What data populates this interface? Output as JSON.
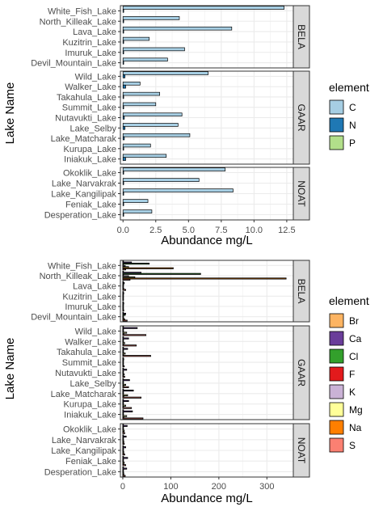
{
  "chart_data": [
    {
      "type": "bar",
      "orientation": "horizontal",
      "xlabel": "Abundance mg/L",
      "ylabel": "Lake Name",
      "xlim": [
        -0.2,
        13.0
      ],
      "xticks": [
        0.0,
        2.5,
        5.0,
        7.5,
        10.0,
        12.5
      ],
      "xtick_labels": [
        "0.0",
        "2.5",
        "5.0",
        "7.5",
        "10.0",
        "12.5"
      ],
      "grid": true,
      "legend": {
        "title": "element",
        "position": "right",
        "items": [
          {
            "label": "C",
            "color": "#a6cee3"
          },
          {
            "label": "N",
            "color": "#1f78b4"
          },
          {
            "label": "P",
            "color": "#b2df8a"
          }
        ]
      },
      "facets": [
        {
          "label": "BELA",
          "lakes": [
            "White_Fish_Lake",
            "North_Killeak_Lake",
            "Lava_Lake",
            "Kuzitrin_Lake",
            "Imuruk_Lake",
            "Devil_Mountain_Lake"
          ],
          "C": [
            12.3,
            4.3,
            8.3,
            2.0,
            4.7,
            3.4
          ],
          "N": [
            0.05,
            0.03,
            0.03,
            0.02,
            0.02,
            0.03
          ],
          "P": [
            0,
            0,
            0,
            0,
            0,
            0
          ]
        },
        {
          "label": "GAAR",
          "lakes": [
            "Wild_Lake",
            "Walker_Lake",
            "Takahula_Lake",
            "Summit_Lake",
            "Nutavukti_Lake",
            "Lake_Selby",
            "Lake_Matcharak",
            "Kurupa_Lake",
            "Iniakuk_Lake"
          ],
          "C": [
            6.5,
            1.3,
            2.8,
            2.5,
            4.5,
            4.2,
            5.1,
            2.1,
            3.3
          ],
          "N": [
            0.15,
            0.2,
            0.05,
            0.05,
            0.1,
            0.15,
            0.1,
            0.05,
            0.2
          ],
          "P": [
            0,
            0,
            0,
            0,
            0,
            0,
            0,
            0,
            0
          ]
        },
        {
          "label": "NOAT",
          "lakes": [
            "Okoklik_Lake",
            "Lake_Narvakrak",
            "Lake_Kangilipak",
            "Feniak_Lake",
            "Desperation_Lake"
          ],
          "C": [
            7.8,
            5.8,
            8.4,
            1.9,
            2.2
          ],
          "N": [
            0.05,
            0.05,
            0.05,
            0.05,
            0.05
          ],
          "P": [
            0,
            0,
            0,
            0,
            0
          ]
        }
      ]
    },
    {
      "type": "bar",
      "orientation": "horizontal",
      "xlabel": "Abundance mg/L",
      "ylabel": "Lake Name",
      "xlim": [
        -5,
        355
      ],
      "xticks": [
        0,
        100,
        200,
        300
      ],
      "xtick_labels": [
        "0",
        "100",
        "200",
        "300"
      ],
      "grid": true,
      "legend": {
        "title": "element",
        "position": "right",
        "items": [
          {
            "label": "Br",
            "color": "#fdb462"
          },
          {
            "label": "Ca",
            "color": "#6a3d9a"
          },
          {
            "label": "Cl",
            "color": "#33a02c"
          },
          {
            "label": "F",
            "color": "#e31a1c"
          },
          {
            "label": "K",
            "color": "#cab2d6"
          },
          {
            "label": "Mg",
            "color": "#ffff99"
          },
          {
            "label": "Na",
            "color": "#ff7f00"
          },
          {
            "label": "S",
            "color": "#fb8072"
          }
        ]
      },
      "element_order": [
        "Br",
        "Ca",
        "Cl",
        "F",
        "K",
        "Mg",
        "Na",
        "S"
      ],
      "facets": [
        {
          "label": "BELA",
          "lakes": [
            "White_Fish_Lake",
            "North_Killeak_Lake",
            "Lava_Lake",
            "Kuzitrin_Lake",
            "Imuruk_Lake",
            "Devil_Mountain_Lake"
          ],
          "values": [
            [
              0.1,
              18,
              55,
              0.05,
              5,
              12,
              105,
              6
            ],
            [
              0.5,
              38,
              162,
              0.1,
              12,
              25,
              340,
              15
            ],
            [
              0.01,
              3,
              2,
              0.02,
              0.5,
              1,
              2,
              6
            ],
            [
              0.01,
              2,
              1,
              0.02,
              0.3,
              0.5,
              1,
              1
            ],
            [
              0.01,
              2,
              1,
              0.02,
              0.3,
              0.5,
              1,
              2
            ],
            [
              0.01,
              6,
              5,
              0.02,
              1,
              2,
              4,
              9
            ]
          ]
        },
        {
          "label": "GAAR",
          "lakes": [
            "Wild_Lake",
            "Walker_Lake",
            "Takahula_Lake",
            "Summit_Lake",
            "Nutavukti_Lake",
            "Lake_Selby",
            "Lake_Matcharak",
            "Kurupa_Lake",
            "Iniakuk_Lake"
          ],
          "values": [
            [
              0.01,
              30,
              1,
              0.05,
              1,
              8,
              2,
              48
            ],
            [
              0.01,
              12,
              1,
              0.05,
              1,
              4,
              1,
              28
            ],
            [
              0.01,
              10,
              1,
              0.05,
              1,
              5,
              1,
              58
            ],
            [
              0.01,
              2,
              1,
              0.05,
              0.5,
              1,
              1,
              3
            ],
            [
              0.01,
              8,
              1,
              0.05,
              1,
              3,
              1,
              4
            ],
            [
              0.01,
              14,
              1,
              0.05,
              1,
              6,
              2,
              12
            ],
            [
              0.01,
              22,
              1,
              0.05,
              1,
              10,
              2,
              38
            ],
            [
              0.01,
              12,
              1,
              0.05,
              1,
              6,
              1,
              18
            ],
            [
              0.01,
              20,
              1,
              0.05,
              1,
              8,
              2,
              42
            ]
          ]
        },
        {
          "label": "NOAT",
          "lakes": [
            "Okoklik_Lake",
            "Lake_Narvakrak",
            "Lake_Kangilipak",
            "Feniak_Lake",
            "Desperation_Lake"
          ],
          "values": [
            [
              0.01,
              9,
              1,
              0.05,
              1,
              3,
              2,
              4
            ],
            [
              0.01,
              7,
              1,
              0.05,
              1,
              2,
              2,
              3
            ],
            [
              0.01,
              6,
              1,
              0.05,
              1,
              2,
              2,
              4
            ],
            [
              0.01,
              10,
              1,
              0.05,
              1,
              3,
              2,
              6
            ],
            [
              0.01,
              8,
              1,
              0.05,
              1,
              2,
              2,
              5
            ]
          ]
        }
      ]
    }
  ]
}
